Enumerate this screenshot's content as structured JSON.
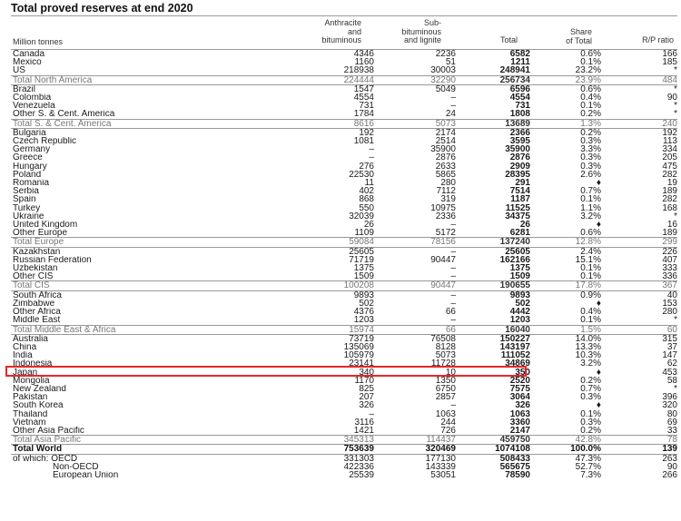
{
  "title": "Total proved reserves at end 2020",
  "headers": {
    "unit": "Million tonnes",
    "anthracite": "Anthracite\nand\nbituminous",
    "subbit": "Sub-\nbituminous\nand lignite",
    "total": "Total",
    "share": "Share\nof Total",
    "rp": "R/P ratio"
  },
  "rows": [
    {
      "name": "Canada",
      "a": "4346",
      "b": "2236",
      "t": "6582",
      "s": "0.6%",
      "r": "166",
      "type": "first"
    },
    {
      "name": "Mexico",
      "a": "1160",
      "b": "51",
      "t": "1211",
      "s": "0.1%",
      "r": "185"
    },
    {
      "name": "US",
      "a": "218938",
      "b": "30003",
      "t": "248941",
      "s": "23.2%",
      "r": "*"
    },
    {
      "name": "Total North America",
      "a": "224444",
      "b": "32290",
      "t": "256734",
      "s": "23.9%",
      "r": "484",
      "type": "sub"
    },
    {
      "name": "Brazil",
      "a": "1547",
      "b": "5049",
      "t": "6596",
      "s": "0.6%",
      "r": "*"
    },
    {
      "name": "Colombia",
      "a": "4554",
      "b": "–",
      "t": "4554",
      "s": "0.4%",
      "r": "90"
    },
    {
      "name": "Venezuela",
      "a": "731",
      "b": "–",
      "t": "731",
      "s": "0.1%",
      "r": "*"
    },
    {
      "name": "Other S. & Cent. America",
      "a": "1784",
      "b": "24",
      "t": "1808",
      "s": "0.2%",
      "r": "*"
    },
    {
      "name": "Total S. & Cent. America",
      "a": "8616",
      "b": "5073",
      "t": "13689",
      "s": "1.3%",
      "r": "240",
      "type": "sub"
    },
    {
      "name": "Bulgaria",
      "a": "192",
      "b": "2174",
      "t": "2366",
      "s": "0.2%",
      "r": "192"
    },
    {
      "name": "Czech Republic",
      "a": "1081",
      "b": "2514",
      "t": "3595",
      "s": "0.3%",
      "r": "113"
    },
    {
      "name": "Germany",
      "a": "–",
      "b": "35900",
      "t": "35900",
      "s": "3.3%",
      "r": "334"
    },
    {
      "name": "Greece",
      "a": "–",
      "b": "2876",
      "t": "2876",
      "s": "0.3%",
      "r": "205"
    },
    {
      "name": "Hungary",
      "a": "276",
      "b": "2633",
      "t": "2909",
      "s": "0.3%",
      "r": "475"
    },
    {
      "name": "Poland",
      "a": "22530",
      "b": "5865",
      "t": "28395",
      "s": "2.6%",
      "r": "282"
    },
    {
      "name": "Romania",
      "a": "11",
      "b": "280",
      "t": "291",
      "s": "♦",
      "r": "19"
    },
    {
      "name": "Serbia",
      "a": "402",
      "b": "7112",
      "t": "7514",
      "s": "0.7%",
      "r": "189"
    },
    {
      "name": "Spain",
      "a": "868",
      "b": "319",
      "t": "1187",
      "s": "0.1%",
      "r": "282"
    },
    {
      "name": "Turkey",
      "a": "550",
      "b": "10975",
      "t": "11525",
      "s": "1.1%",
      "r": "168"
    },
    {
      "name": "Ukraine",
      "a": "32039",
      "b": "2336",
      "t": "34375",
      "s": "3.2%",
      "r": "*"
    },
    {
      "name": "United Kingdom",
      "a": "26",
      "b": "–",
      "t": "26",
      "s": "♦",
      "r": "16"
    },
    {
      "name": "Other Europe",
      "a": "1109",
      "b": "5172",
      "t": "6281",
      "s": "0.6%",
      "r": "189"
    },
    {
      "name": "Total Europe",
      "a": "59084",
      "b": "78156",
      "t": "137240",
      "s": "12.8%",
      "r": "299",
      "type": "sub"
    },
    {
      "name": "Kazakhstan",
      "a": "25605",
      "b": "–",
      "t": "25605",
      "s": "2.4%",
      "r": "226"
    },
    {
      "name": "Russian Federation",
      "a": "71719",
      "b": "90447",
      "t": "162166",
      "s": "15.1%",
      "r": "407"
    },
    {
      "name": "Uzbekistan",
      "a": "1375",
      "b": "–",
      "t": "1375",
      "s": "0.1%",
      "r": "333"
    },
    {
      "name": "Other CIS",
      "a": "1509",
      "b": "–",
      "t": "1509",
      "s": "0.1%",
      "r": "336"
    },
    {
      "name": "Total CIS",
      "a": "100208",
      "b": "90447",
      "t": "190655",
      "s": "17.8%",
      "r": "367",
      "type": "sub"
    },
    {
      "name": "South Africa",
      "a": "9893",
      "b": "–",
      "t": "9893",
      "s": "0.9%",
      "r": "40"
    },
    {
      "name": "Zimbabwe",
      "a": "502",
      "b": "–",
      "t": "502",
      "s": "♦",
      "r": "153"
    },
    {
      "name": "Other Africa",
      "a": "4376",
      "b": "66",
      "t": "4442",
      "s": "0.4%",
      "r": "280"
    },
    {
      "name": "Middle East",
      "a": "1203",
      "b": "–",
      "t": "1203",
      "s": "0.1%",
      "r": "*"
    },
    {
      "name": "Total Middle East & Africa",
      "a": "15974",
      "b": "66",
      "t": "16040",
      "s": "1.5%",
      "r": "60",
      "type": "sub"
    },
    {
      "name": "Australia",
      "a": "73719",
      "b": "76508",
      "t": "150227",
      "s": "14.0%",
      "r": "315"
    },
    {
      "name": "China",
      "a": "135069",
      "b": "8128",
      "t": "143197",
      "s": "13.3%",
      "r": "37"
    },
    {
      "name": "India",
      "a": "105979",
      "b": "5073",
      "t": "111052",
      "s": "10.3%",
      "r": "147"
    },
    {
      "name": "Indonesia",
      "a": "23141",
      "b": "11728",
      "t": "34869",
      "s": "3.2%",
      "r": "62"
    },
    {
      "name": "Japan",
      "a": "340",
      "b": "10",
      "t": "350",
      "s": "♦",
      "r": "453"
    },
    {
      "name": "Mongolia",
      "a": "1170",
      "b": "1350",
      "t": "2520",
      "s": "0.2%",
      "r": "58"
    },
    {
      "name": "New Zealand",
      "a": "825",
      "b": "6750",
      "t": "7575",
      "s": "0.7%",
      "r": "*"
    },
    {
      "name": "Pakistan",
      "a": "207",
      "b": "2857",
      "t": "3064",
      "s": "0.3%",
      "r": "396"
    },
    {
      "name": "South Korea",
      "a": "326",
      "b": "–",
      "t": "326",
      "s": "♦",
      "r": "320"
    },
    {
      "name": "Thailand",
      "a": "–",
      "b": "1063",
      "t": "1063",
      "s": "0.1%",
      "r": "80"
    },
    {
      "name": "Vietnam",
      "a": "3116",
      "b": "244",
      "t": "3360",
      "s": "0.3%",
      "r": "69"
    },
    {
      "name": "Other Asia Pacific",
      "a": "1421",
      "b": "726",
      "t": "2147",
      "s": "0.2%",
      "r": "33"
    },
    {
      "name": "Total Asia Pacific",
      "a": "345313",
      "b": "114437",
      "t": "459750",
      "s": "42.8%",
      "r": "78",
      "type": "sub"
    },
    {
      "name": "Total World",
      "a": "753639",
      "b": "320469",
      "t": "1074108",
      "s": "100.0%",
      "r": "139",
      "type": "world"
    },
    {
      "name": "of which: OECD",
      "a": "331303",
      "b": "177130",
      "t": "508433",
      "s": "47.3%",
      "r": "263"
    },
    {
      "name": "Non-OECD",
      "a": "422336",
      "b": "143339",
      "t": "565675",
      "s": "52.7%",
      "r": "90",
      "indent": true
    },
    {
      "name": "European Union",
      "a": "25539",
      "b": "53051",
      "t": "78590",
      "s": "7.3%",
      "r": "266",
      "indent": true
    }
  ],
  "highlight_color": "#e8262a"
}
